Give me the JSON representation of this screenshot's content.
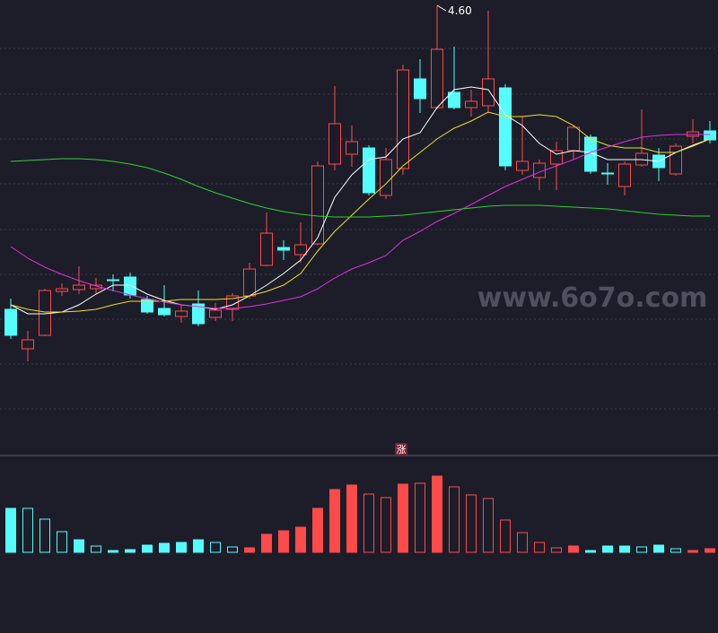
{
  "chart_data": {
    "type": "candlestick",
    "ylim": [
      3.6,
      4.612
    ],
    "up_color": "#ff4a4a",
    "down_color": "#54fcfc",
    "annotation": "4.60",
    "watermark": "www.6o7o.com",
    "badge": "涨",
    "candles": {
      "open": [
        3.922,
        3.834,
        3.864,
        3.962,
        3.966,
        3.968,
        3.988,
        3.994,
        3.944,
        3.924,
        3.906,
        3.934,
        3.904,
        3.922,
        3.952,
        4.02,
        4.06,
        4.044,
        4.068,
        4.246,
        4.268,
        4.282,
        4.176,
        4.236,
        4.436,
        4.372,
        4.406,
        4.372,
        4.376,
        4.416,
        4.232,
        4.216,
        4.246,
        4.276,
        4.306,
        4.226,
        4.196,
        4.244,
        4.266,
        4.224,
        4.308,
        4.32
      ],
      "high": [
        3.946,
        3.874,
        3.968,
        3.98,
        4.018,
        3.992,
        4.0,
        4.004,
        3.952,
        3.976,
        3.932,
        3.964,
        3.936,
        3.958,
        4.026,
        4.138,
        4.076,
        4.116,
        4.252,
        4.42,
        4.332,
        4.288,
        4.282,
        4.468,
        4.48,
        4.6,
        4.508,
        4.412,
        4.588,
        4.424,
        4.352,
        4.256,
        4.296,
        4.332,
        4.312,
        4.248,
        4.252,
        4.368,
        4.282,
        4.292,
        4.346,
        4.342
      ],
      "low": [
        3.856,
        3.806,
        3.862,
        3.952,
        3.956,
        3.956,
        3.962,
        3.946,
        3.912,
        3.906,
        3.892,
        3.884,
        3.896,
        3.896,
        3.946,
        4.018,
        4.032,
        4.026,
        4.064,
        4.232,
        4.24,
        4.176,
        4.168,
        4.222,
        4.36,
        4.368,
        4.368,
        4.352,
        4.36,
        4.232,
        4.222,
        4.188,
        4.188,
        4.256,
        4.224,
        4.2,
        4.176,
        4.24,
        4.208,
        4.22,
        4.292,
        4.292
      ],
      "close": [
        3.864,
        3.854,
        3.964,
        3.968,
        3.976,
        3.976,
        3.986,
        3.954,
        3.916,
        3.91,
        3.918,
        3.89,
        3.92,
        3.952,
        4.012,
        4.092,
        4.054,
        4.066,
        4.242,
        4.336,
        4.296,
        4.182,
        4.256,
        4.456,
        4.392,
        4.502,
        4.372,
        4.386,
        4.436,
        4.242,
        4.252,
        4.248,
        4.276,
        4.328,
        4.23,
        4.224,
        4.246,
        4.27,
        4.238,
        4.286,
        4.318,
        4.3
      ]
    },
    "moving_averages": [
      {
        "color": "#ffffff",
        "values": [
          3.932,
          3.912,
          3.912,
          3.916,
          3.932,
          3.956,
          3.976,
          3.976,
          3.956,
          3.942,
          3.932,
          3.928,
          3.922,
          3.932,
          3.952,
          3.976,
          4.002,
          4.032,
          4.082,
          4.172,
          4.222,
          4.256,
          4.262,
          4.302,
          4.316,
          4.372,
          4.412,
          4.418,
          4.412,
          4.356,
          4.332,
          4.292,
          4.268,
          4.276,
          4.272,
          4.256,
          4.256,
          4.256,
          4.252,
          4.272,
          4.288,
          4.302
        ]
      },
      {
        "color": "#f0e020",
        "values": [
          3.932,
          3.922,
          3.916,
          3.916,
          3.918,
          3.922,
          3.932,
          3.94,
          3.94,
          3.94,
          3.944,
          3.944,
          3.944,
          3.946,
          3.952,
          3.962,
          3.976,
          4.002,
          4.052,
          4.096,
          4.132,
          4.168,
          4.202,
          4.242,
          4.272,
          4.302,
          4.326,
          4.342,
          4.362,
          4.352,
          4.352,
          4.356,
          4.352,
          4.332,
          4.302,
          4.288,
          4.282,
          4.282,
          4.272,
          4.272,
          4.286,
          4.302
        ]
      },
      {
        "color": "#e030e0",
        "values": [
          4.062,
          4.036,
          4.016,
          4.0,
          3.986,
          3.974,
          3.964,
          3.954,
          3.946,
          3.938,
          3.932,
          3.928,
          3.924,
          3.924,
          3.928,
          3.934,
          3.942,
          3.95,
          3.968,
          3.992,
          4.012,
          4.026,
          4.042,
          4.076,
          4.096,
          4.118,
          4.136,
          4.156,
          4.176,
          4.196,
          4.212,
          4.228,
          4.242,
          4.256,
          4.272,
          4.284,
          4.296,
          4.306,
          4.31,
          4.312,
          4.312,
          4.312
        ]
      },
      {
        "color": "#30d030",
        "values": [
          4.252,
          4.254,
          4.256,
          4.258,
          4.258,
          4.256,
          4.252,
          4.246,
          4.238,
          4.226,
          4.212,
          4.196,
          4.182,
          4.17,
          4.158,
          4.148,
          4.14,
          4.134,
          4.13,
          4.128,
          4.128,
          4.128,
          4.13,
          4.132,
          4.136,
          4.14,
          4.144,
          4.148,
          4.152,
          4.154,
          4.154,
          4.154,
          4.152,
          4.15,
          4.148,
          4.146,
          4.142,
          4.138,
          4.134,
          4.132,
          4.13,
          4.13
        ]
      }
    ],
    "volume": {
      "ylim": [
        0,
        100
      ],
      "values": [
        49,
        49,
        37,
        23,
        14,
        7,
        2,
        3,
        8,
        10,
        11,
        14,
        11,
        6,
        5,
        20,
        24,
        28,
        49,
        70,
        75,
        65,
        61,
        76,
        77,
        85,
        73,
        64,
        60,
        36,
        22,
        11,
        5,
        7,
        2,
        7,
        7,
        6,
        8,
        4,
        2,
        4
      ],
      "colors": [
        "#54fcfc",
        "#54fcfc",
        "#54fcfc",
        "#54fcfc",
        "#54fcfc",
        "#54fcfc",
        "#54fcfc",
        "#54fcfc",
        "#54fcfc",
        "#54fcfc",
        "#54fcfc",
        "#54fcfc",
        "#54fcfc",
        "#54fcfc",
        "#ff4a4a",
        "#ff4a4a",
        "#ff4a4a",
        "#ff4a4a",
        "#ff4a4a",
        "#ff4a4a",
        "#ff4a4a",
        "#ff4a4a",
        "#ff4a4a",
        "#ff4a4a",
        "#ff4a4a",
        "#ff4a4a",
        "#ff4a4a",
        "#ff4a4a",
        "#ff4a4a",
        "#ff4a4a",
        "#ff4a4a",
        "#ff4a4a",
        "#ff4a4a",
        "#ff4a4a",
        "#54fcfc",
        "#54fcfc",
        "#54fcfc",
        "#54fcfc",
        "#54fcfc",
        "#54fcfc",
        "#ff4a4a",
        "#ff4a4a"
      ],
      "hollow": [
        false,
        true,
        true,
        true,
        false,
        true,
        false,
        false,
        false,
        false,
        false,
        false,
        true,
        true,
        false,
        false,
        false,
        false,
        false,
        false,
        false,
        true,
        true,
        false,
        true,
        false,
        true,
        true,
        true,
        true,
        true,
        true,
        true,
        false,
        false,
        false,
        false,
        true,
        false,
        true,
        false,
        false
      ]
    }
  }
}
